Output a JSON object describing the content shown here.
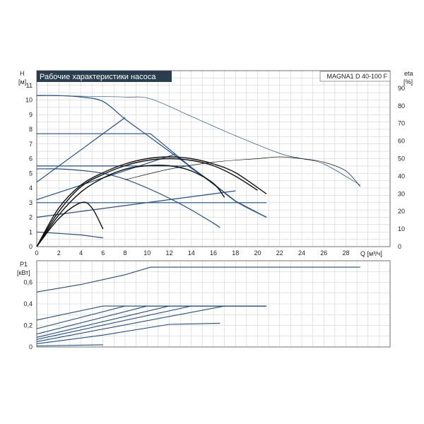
{
  "header": {
    "title": "Рабочие характеристики насоса",
    "model": "MAGNA1 D 40-100 F",
    "title_bg": "#2b3e50"
  },
  "axes": {
    "h_label_1": "H",
    "h_label_2": "[м]",
    "eta_label_1": "eta",
    "eta_label_2": "[%]",
    "q_label": "Q [м³/ч]",
    "p_label_1": "P1",
    "p_label_2": "[кВт]"
  },
  "colors": {
    "blue": "#1f4e8c",
    "black": "#111111",
    "grid": "#c8c8c8"
  },
  "chart_data": [
    {
      "type": "line",
      "title": "Рабочие характеристики насоса",
      "xlabel": "Q [м³/ч]",
      "ylabel": "H [м]",
      "y2label": "eta [%]",
      "xlim": [
        0,
        32
      ],
      "ylim": [
        0,
        12
      ],
      "y2lim": [
        0,
        100
      ],
      "grid": true,
      "x_ticks": [
        "0",
        "2",
        "4",
        "6",
        "8",
        "10",
        "12",
        "14",
        "16",
        "18",
        "20",
        "22",
        "24",
        "26",
        "28"
      ],
      "y_ticks": [
        "0",
        "1",
        "2",
        "3",
        "4",
        "5",
        "6",
        "7",
        "8",
        "9",
        "10",
        "11"
      ],
      "y2_ticks": [
        "0",
        "10",
        "20",
        "30",
        "40",
        "50",
        "60",
        "70",
        "80",
        "90"
      ],
      "series": [
        {
          "role": "head",
          "color": "blue",
          "x": [
            0,
            2,
            4,
            6,
            8,
            10,
            12,
            14,
            16,
            18,
            20.8
          ],
          "y": [
            10.3,
            10.3,
            10.2,
            9.9,
            8.7,
            7.6,
            6.5,
            5.4,
            4.3,
            3.1,
            2.0
          ]
        },
        {
          "role": "head",
          "color": "blue",
          "x": [
            0,
            10.3,
            14,
            18,
            20.8
          ],
          "y": [
            7.7,
            7.7,
            5.4,
            3.1,
            2.0
          ]
        },
        {
          "role": "head",
          "color": "blue",
          "x": [
            0,
            13.7,
            16,
            18,
            20.8
          ],
          "y": [
            5.5,
            5.5,
            4.3,
            3.1,
            2.0
          ]
        },
        {
          "role": "head",
          "color": "blue",
          "x": [
            0,
            2,
            4,
            6,
            8,
            10,
            12,
            14,
            16,
            16.6
          ],
          "y": [
            5.3,
            5.3,
            5.2,
            5.0,
            4.6,
            4.0,
            3.3,
            2.5,
            1.6,
            1.3
          ]
        },
        {
          "role": "head",
          "color": "blue",
          "x": [
            0,
            2,
            4,
            6
          ],
          "y": [
            1.0,
            0.9,
            0.8,
            0.6
          ]
        },
        {
          "role": "prop",
          "color": "blue",
          "x": [
            0,
            8
          ],
          "y": [
            4.4,
            8.8
          ]
        },
        {
          "role": "prop",
          "color": "blue",
          "x": [
            0,
            12.5
          ],
          "y": [
            3.2,
            6.3
          ]
        },
        {
          "role": "prop",
          "color": "blue",
          "x": [
            0,
            18
          ],
          "y": [
            2.0,
            3.8
          ]
        },
        {
          "role": "const",
          "color": "blue",
          "x": [
            0,
            20.8
          ],
          "y": [
            3.0,
            3.0
          ]
        },
        {
          "role": "eta",
          "color": "black",
          "x": [
            0,
            2,
            4,
            6,
            8,
            10,
            12,
            14,
            16,
            18,
            20.8
          ],
          "y": [
            0,
            22,
            35,
            42,
            47,
            50,
            51,
            50,
            47,
            42,
            30
          ]
        },
        {
          "role": "eta",
          "color": "black",
          "x": [
            0,
            2,
            4,
            6,
            8,
            10,
            12,
            14,
            16,
            18,
            20
          ],
          "y": [
            0,
            20,
            34,
            41,
            46,
            49,
            50,
            49,
            46,
            40,
            32
          ]
        },
        {
          "role": "eta",
          "color": "black",
          "x": [
            0,
            2,
            4,
            6,
            8,
            10,
            12,
            14,
            16,
            17
          ],
          "y": [
            0,
            18,
            31,
            39,
            44,
            46,
            46,
            43,
            36,
            28
          ]
        },
        {
          "role": "eta",
          "color": "black",
          "x": [
            0,
            2,
            4,
            5,
            6
          ],
          "y": [
            0,
            16,
            25,
            22,
            10
          ]
        },
        {
          "role": "eta_max",
          "color": "blue",
          "x": [
            0,
            4,
            8,
            10.3,
            14,
            18,
            22,
            24,
            26,
            29.3
          ],
          "y": [
            86,
            85.5,
            85,
            84,
            74,
            63,
            53,
            50,
            47,
            35
          ]
        },
        {
          "role": "eta_max",
          "color": "black",
          "x": [
            8,
            12,
            16,
            20,
            22,
            24,
            26,
            28,
            29.3
          ],
          "y": [
            38,
            44,
            48,
            50,
            51,
            50,
            48,
            43,
            34
          ]
        }
      ]
    },
    {
      "type": "line",
      "xlabel": "Q [м³/ч]",
      "ylabel": "P1 [кВт]",
      "xlim": [
        0,
        32
      ],
      "ylim": [
        0,
        0.8
      ],
      "grid": true,
      "y_ticks": [
        "0",
        "0,2",
        "0,4",
        "0,6"
      ],
      "series": [
        {
          "role": "power",
          "color": "blue",
          "x": [
            0,
            4,
            8,
            10.3,
            29.3
          ],
          "y": [
            0.51,
            0.58,
            0.67,
            0.74,
            0.74
          ]
        },
        {
          "role": "power",
          "color": "blue",
          "x": [
            0,
            6,
            20.8
          ],
          "y": [
            0.25,
            0.38,
            0.38
          ]
        },
        {
          "role": "power",
          "color": "blue",
          "x": [
            0,
            8,
            20.8
          ],
          "y": [
            0.17,
            0.38,
            0.38
          ]
        },
        {
          "role": "power",
          "color": "blue",
          "x": [
            0,
            10,
            20.8
          ],
          "y": [
            0.12,
            0.38,
            0.38
          ]
        },
        {
          "role": "power",
          "color": "blue",
          "x": [
            0,
            12,
            20.8
          ],
          "y": [
            0.09,
            0.38,
            0.38
          ]
        },
        {
          "role": "power",
          "color": "blue",
          "x": [
            0,
            14,
            20.8
          ],
          "y": [
            0.07,
            0.38,
            0.38
          ]
        },
        {
          "role": "power",
          "color": "blue",
          "x": [
            0,
            17,
            20.8
          ],
          "y": [
            0.05,
            0.38,
            0.38
          ]
        },
        {
          "role": "power",
          "color": "blue",
          "x": [
            0,
            6,
            12,
            16.6
          ],
          "y": [
            0.03,
            0.11,
            0.21,
            0.22
          ]
        },
        {
          "role": "power",
          "color": "blue",
          "x": [
            0,
            6
          ],
          "y": [
            0.01,
            0.02
          ]
        }
      ]
    }
  ]
}
